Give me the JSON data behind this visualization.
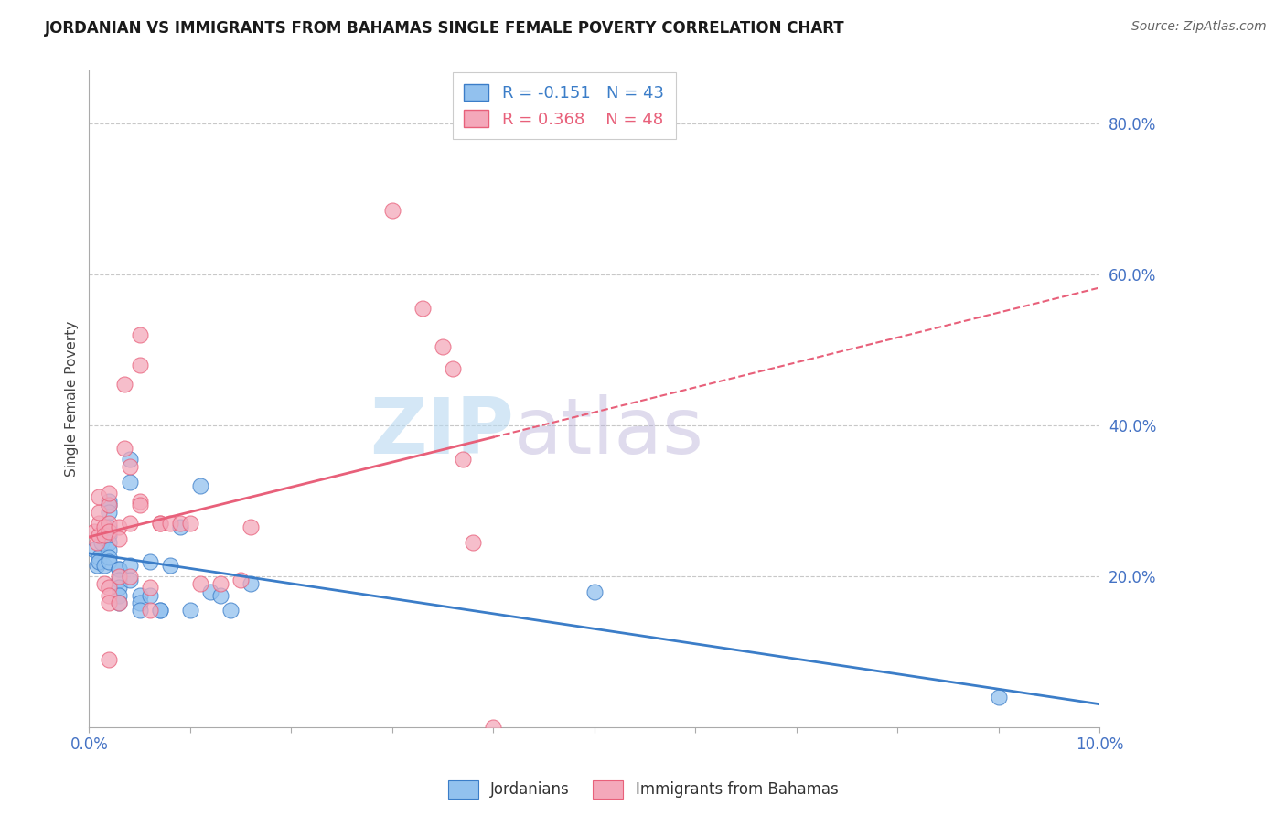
{
  "title": "JORDANIAN VS IMMIGRANTS FROM BAHAMAS SINGLE FEMALE POVERTY CORRELATION CHART",
  "source": "Source: ZipAtlas.com",
  "ylabel": "Single Female Poverty",
  "y_ticks": [
    0.2,
    0.4,
    0.6,
    0.8
  ],
  "y_tick_labels": [
    "20.0%",
    "40.0%",
    "60.0%",
    "80.0%"
  ],
  "xlim": [
    0.0,
    0.1
  ],
  "ylim": [
    0.0,
    0.87
  ],
  "color_blue": "#92C1EE",
  "color_pink": "#F4A8BA",
  "line_color_blue": "#3B7DC8",
  "line_color_pink": "#E8607A",
  "watermark_zip": "ZIP",
  "watermark_atlas": "atlas",
  "jordanians": [
    [
      0.0005,
      0.235
    ],
    [
      0.0008,
      0.215
    ],
    [
      0.001,
      0.225
    ],
    [
      0.001,
      0.22
    ],
    [
      0.0012,
      0.245
    ],
    [
      0.0015,
      0.215
    ],
    [
      0.002,
      0.295
    ],
    [
      0.002,
      0.3
    ],
    [
      0.002,
      0.285
    ],
    [
      0.002,
      0.265
    ],
    [
      0.002,
      0.26
    ],
    [
      0.002,
      0.255
    ],
    [
      0.002,
      0.245
    ],
    [
      0.002,
      0.235
    ],
    [
      0.002,
      0.225
    ],
    [
      0.002,
      0.22
    ],
    [
      0.003,
      0.21
    ],
    [
      0.003,
      0.21
    ],
    [
      0.003,
      0.195
    ],
    [
      0.003,
      0.185
    ],
    [
      0.003,
      0.175
    ],
    [
      0.003,
      0.165
    ],
    [
      0.004,
      0.355
    ],
    [
      0.004,
      0.325
    ],
    [
      0.004,
      0.215
    ],
    [
      0.004,
      0.195
    ],
    [
      0.005,
      0.175
    ],
    [
      0.005,
      0.165
    ],
    [
      0.005,
      0.155
    ],
    [
      0.006,
      0.22
    ],
    [
      0.006,
      0.175
    ],
    [
      0.007,
      0.155
    ],
    [
      0.007,
      0.155
    ],
    [
      0.008,
      0.215
    ],
    [
      0.009,
      0.265
    ],
    [
      0.01,
      0.155
    ],
    [
      0.011,
      0.32
    ],
    [
      0.012,
      0.18
    ],
    [
      0.013,
      0.175
    ],
    [
      0.014,
      0.155
    ],
    [
      0.016,
      0.19
    ],
    [
      0.05,
      0.18
    ],
    [
      0.09,
      0.04
    ]
  ],
  "bahamas": [
    [
      0.0005,
      0.26
    ],
    [
      0.0008,
      0.245
    ],
    [
      0.001,
      0.255
    ],
    [
      0.001,
      0.27
    ],
    [
      0.001,
      0.285
    ],
    [
      0.001,
      0.305
    ],
    [
      0.0015,
      0.265
    ],
    [
      0.0015,
      0.255
    ],
    [
      0.0015,
      0.19
    ],
    [
      0.002,
      0.27
    ],
    [
      0.002,
      0.26
    ],
    [
      0.002,
      0.295
    ],
    [
      0.002,
      0.31
    ],
    [
      0.002,
      0.185
    ],
    [
      0.002,
      0.175
    ],
    [
      0.002,
      0.165
    ],
    [
      0.002,
      0.09
    ],
    [
      0.003,
      0.265
    ],
    [
      0.003,
      0.25
    ],
    [
      0.003,
      0.2
    ],
    [
      0.003,
      0.165
    ],
    [
      0.0035,
      0.455
    ],
    [
      0.0035,
      0.37
    ],
    [
      0.004,
      0.345
    ],
    [
      0.004,
      0.27
    ],
    [
      0.004,
      0.2
    ],
    [
      0.005,
      0.52
    ],
    [
      0.005,
      0.48
    ],
    [
      0.005,
      0.3
    ],
    [
      0.005,
      0.295
    ],
    [
      0.006,
      0.155
    ],
    [
      0.006,
      0.185
    ],
    [
      0.007,
      0.27
    ],
    [
      0.007,
      0.27
    ],
    [
      0.008,
      0.27
    ],
    [
      0.009,
      0.27
    ],
    [
      0.01,
      0.27
    ],
    [
      0.011,
      0.19
    ],
    [
      0.013,
      0.19
    ],
    [
      0.015,
      0.195
    ],
    [
      0.016,
      0.265
    ],
    [
      0.03,
      0.685
    ],
    [
      0.033,
      0.555
    ],
    [
      0.035,
      0.505
    ],
    [
      0.036,
      0.475
    ],
    [
      0.037,
      0.355
    ],
    [
      0.038,
      0.245
    ],
    [
      0.04,
      0.0
    ]
  ]
}
